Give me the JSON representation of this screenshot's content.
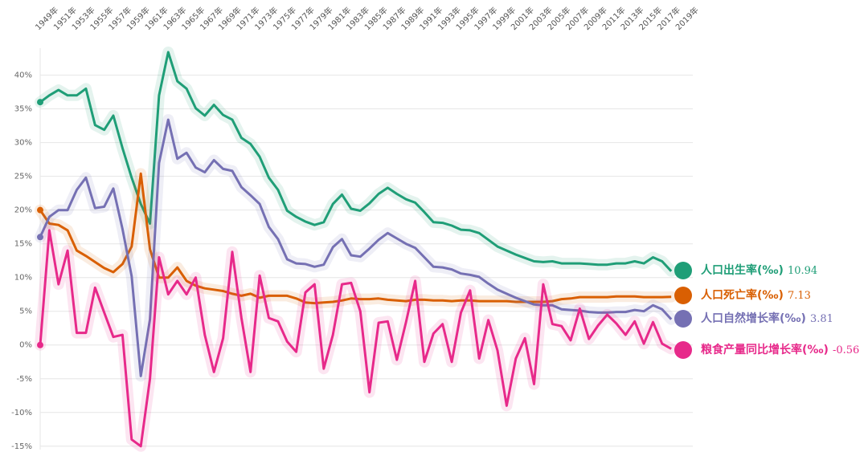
{
  "chart_data": {
    "type": "line",
    "categories": [
      "1949年",
      null,
      "1951年",
      null,
      "1953年",
      null,
      "1955年",
      null,
      "1957年",
      null,
      "1959年",
      null,
      "1961年",
      null,
      "1963年",
      null,
      "1965年",
      null,
      "1967年",
      null,
      "1969年",
      null,
      "1971年",
      null,
      "1973年",
      null,
      "1975年",
      null,
      "1977年",
      null,
      "1979年",
      null,
      "1981年",
      null,
      "1983年",
      null,
      "1985年",
      null,
      "1987年",
      null,
      "1989年",
      null,
      "1991年",
      null,
      "1993年",
      null,
      "1995年",
      null,
      "1997年",
      null,
      "1999年",
      null,
      "2001年",
      null,
      "2003年",
      null,
      "2005年",
      null,
      "2007年",
      null,
      "2009年",
      null,
      "2011年",
      null,
      "2013年",
      null,
      "2015年",
      null,
      "2017年",
      null,
      "2019年"
    ],
    "series": [
      {
        "name": "人口出生率(‰)",
        "color": "#1f9e77",
        "values": [
          36,
          37,
          37.8,
          37,
          37,
          38,
          32.6,
          31.9,
          34,
          29.2,
          24.8,
          20.9,
          18,
          37,
          43.4,
          39.1,
          38,
          35.1,
          34,
          35.6,
          34.1,
          33.4,
          30.7,
          29.8,
          27.9,
          24.8,
          23,
          19.9,
          19,
          18.3,
          17.8,
          18.2,
          20.9,
          22.3,
          20.2,
          19.9,
          21,
          22.4,
          23.3,
          22.4,
          21.6,
          21.1,
          19.7,
          18.2,
          18.1,
          17.7,
          17.1,
          17,
          16.6,
          15.6,
          14.6,
          14,
          13.4,
          12.9,
          12.4,
          12.3,
          12.4,
          12.1,
          12.1,
          12.1,
          12,
          11.9,
          11.9,
          12.1,
          12.1,
          12.4,
          12.1,
          13,
          12.4,
          10.94,
          null
        ]
      },
      {
        "name": "人口死亡率(‰)",
        "color": "#d95f02",
        "values": [
          20,
          18,
          17.8,
          17,
          14,
          13.2,
          12.3,
          11.4,
          10.8,
          12,
          14.6,
          25.4,
          14.2,
          10,
          10,
          11.5,
          9.5,
          8.8,
          8.4,
          8.2,
          8,
          7.6,
          7.3,
          7.6,
          7,
          7.3,
          7.3,
          7.3,
          6.9,
          6.3,
          6.2,
          6.3,
          6.4,
          6.6,
          6.9,
          6.8,
          6.8,
          6.9,
          6.7,
          6.6,
          6.5,
          6.7,
          6.7,
          6.6,
          6.6,
          6.5,
          6.6,
          6.6,
          6.5,
          6.5,
          6.5,
          6.5,
          6.4,
          6.4,
          6.4,
          6.4,
          6.5,
          6.8,
          6.9,
          7.1,
          7.1,
          7.1,
          7.1,
          7.2,
          7.2,
          7.2,
          7.1,
          7.1,
          7.1,
          7.13,
          null
        ]
      },
      {
        "name": "人口自然增长率(‰)",
        "color": "#7570b3",
        "values": [
          16,
          19,
          20,
          20,
          23,
          24.8,
          20.3,
          20.5,
          23.2,
          17.2,
          10.2,
          -4.6,
          3.8,
          27,
          33.4,
          27.6,
          28.5,
          26.3,
          25.6,
          27.4,
          26.1,
          25.8,
          23.4,
          22.2,
          20.9,
          17.5,
          15.7,
          12.7,
          12.1,
          12,
          11.6,
          11.9,
          14.5,
          15.7,
          13.3,
          13.1,
          14.3,
          15.6,
          16.6,
          15.8,
          15,
          14.4,
          13,
          11.6,
          11.5,
          11.2,
          10.6,
          10.4,
          10.1,
          9.1,
          8.2,
          7.6,
          7,
          6.5,
          6,
          5.9,
          5.9,
          5.3,
          5.2,
          5.1,
          4.9,
          4.8,
          4.8,
          4.9,
          4.9,
          5.2,
          5,
          5.9,
          5.3,
          3.81,
          null
        ]
      },
      {
        "name": "粮食产量同比增长率(‰)",
        "color": "#e7298a",
        "values": [
          0,
          17,
          9,
          14,
          1.8,
          1.8,
          8.5,
          4.8,
          1.2,
          1.5,
          -14,
          -15,
          -5,
          13,
          7.5,
          9.5,
          7.5,
          10,
          1.5,
          -4,
          1,
          13.8,
          4,
          -4,
          10.3,
          4,
          3.5,
          0.5,
          -1,
          7.8,
          9,
          -3.5,
          1.5,
          9,
          9.2,
          5,
          -7,
          3.3,
          3.5,
          -2.2,
          3.4,
          9.5,
          -2.5,
          1.7,
          3.1,
          -2.5,
          4.8,
          8.1,
          -2,
          3.7,
          -0.8,
          -9,
          -2,
          1,
          -5.8,
          9,
          3.1,
          2.8,
          0.7,
          5.4,
          0.9,
          2.9,
          4.5,
          3.2,
          1.5,
          3.5,
          0.2,
          3.4,
          0.2,
          -0.56,
          null
        ]
      }
    ],
    "ylim": [
      -15.5,
      44
    ],
    "yticks": [
      {
        "value": -15,
        "label": "-15%"
      },
      {
        "value": -10,
        "label": "-10%"
      },
      {
        "value": -5,
        "label": "-5%"
      },
      {
        "value": 0,
        "label": "0%"
      },
      {
        "value": 5,
        "label": "5%"
      },
      {
        "value": 10,
        "label": "10%"
      },
      {
        "value": 15,
        "label": "15%"
      },
      {
        "value": 20,
        "label": "20%"
      },
      {
        "value": 25,
        "label": "25%"
      },
      {
        "value": 30,
        "label": "30%"
      },
      {
        "value": 35,
        "label": "35%"
      },
      {
        "value": 40,
        "label": "40%"
      }
    ],
    "grid": true
  }
}
